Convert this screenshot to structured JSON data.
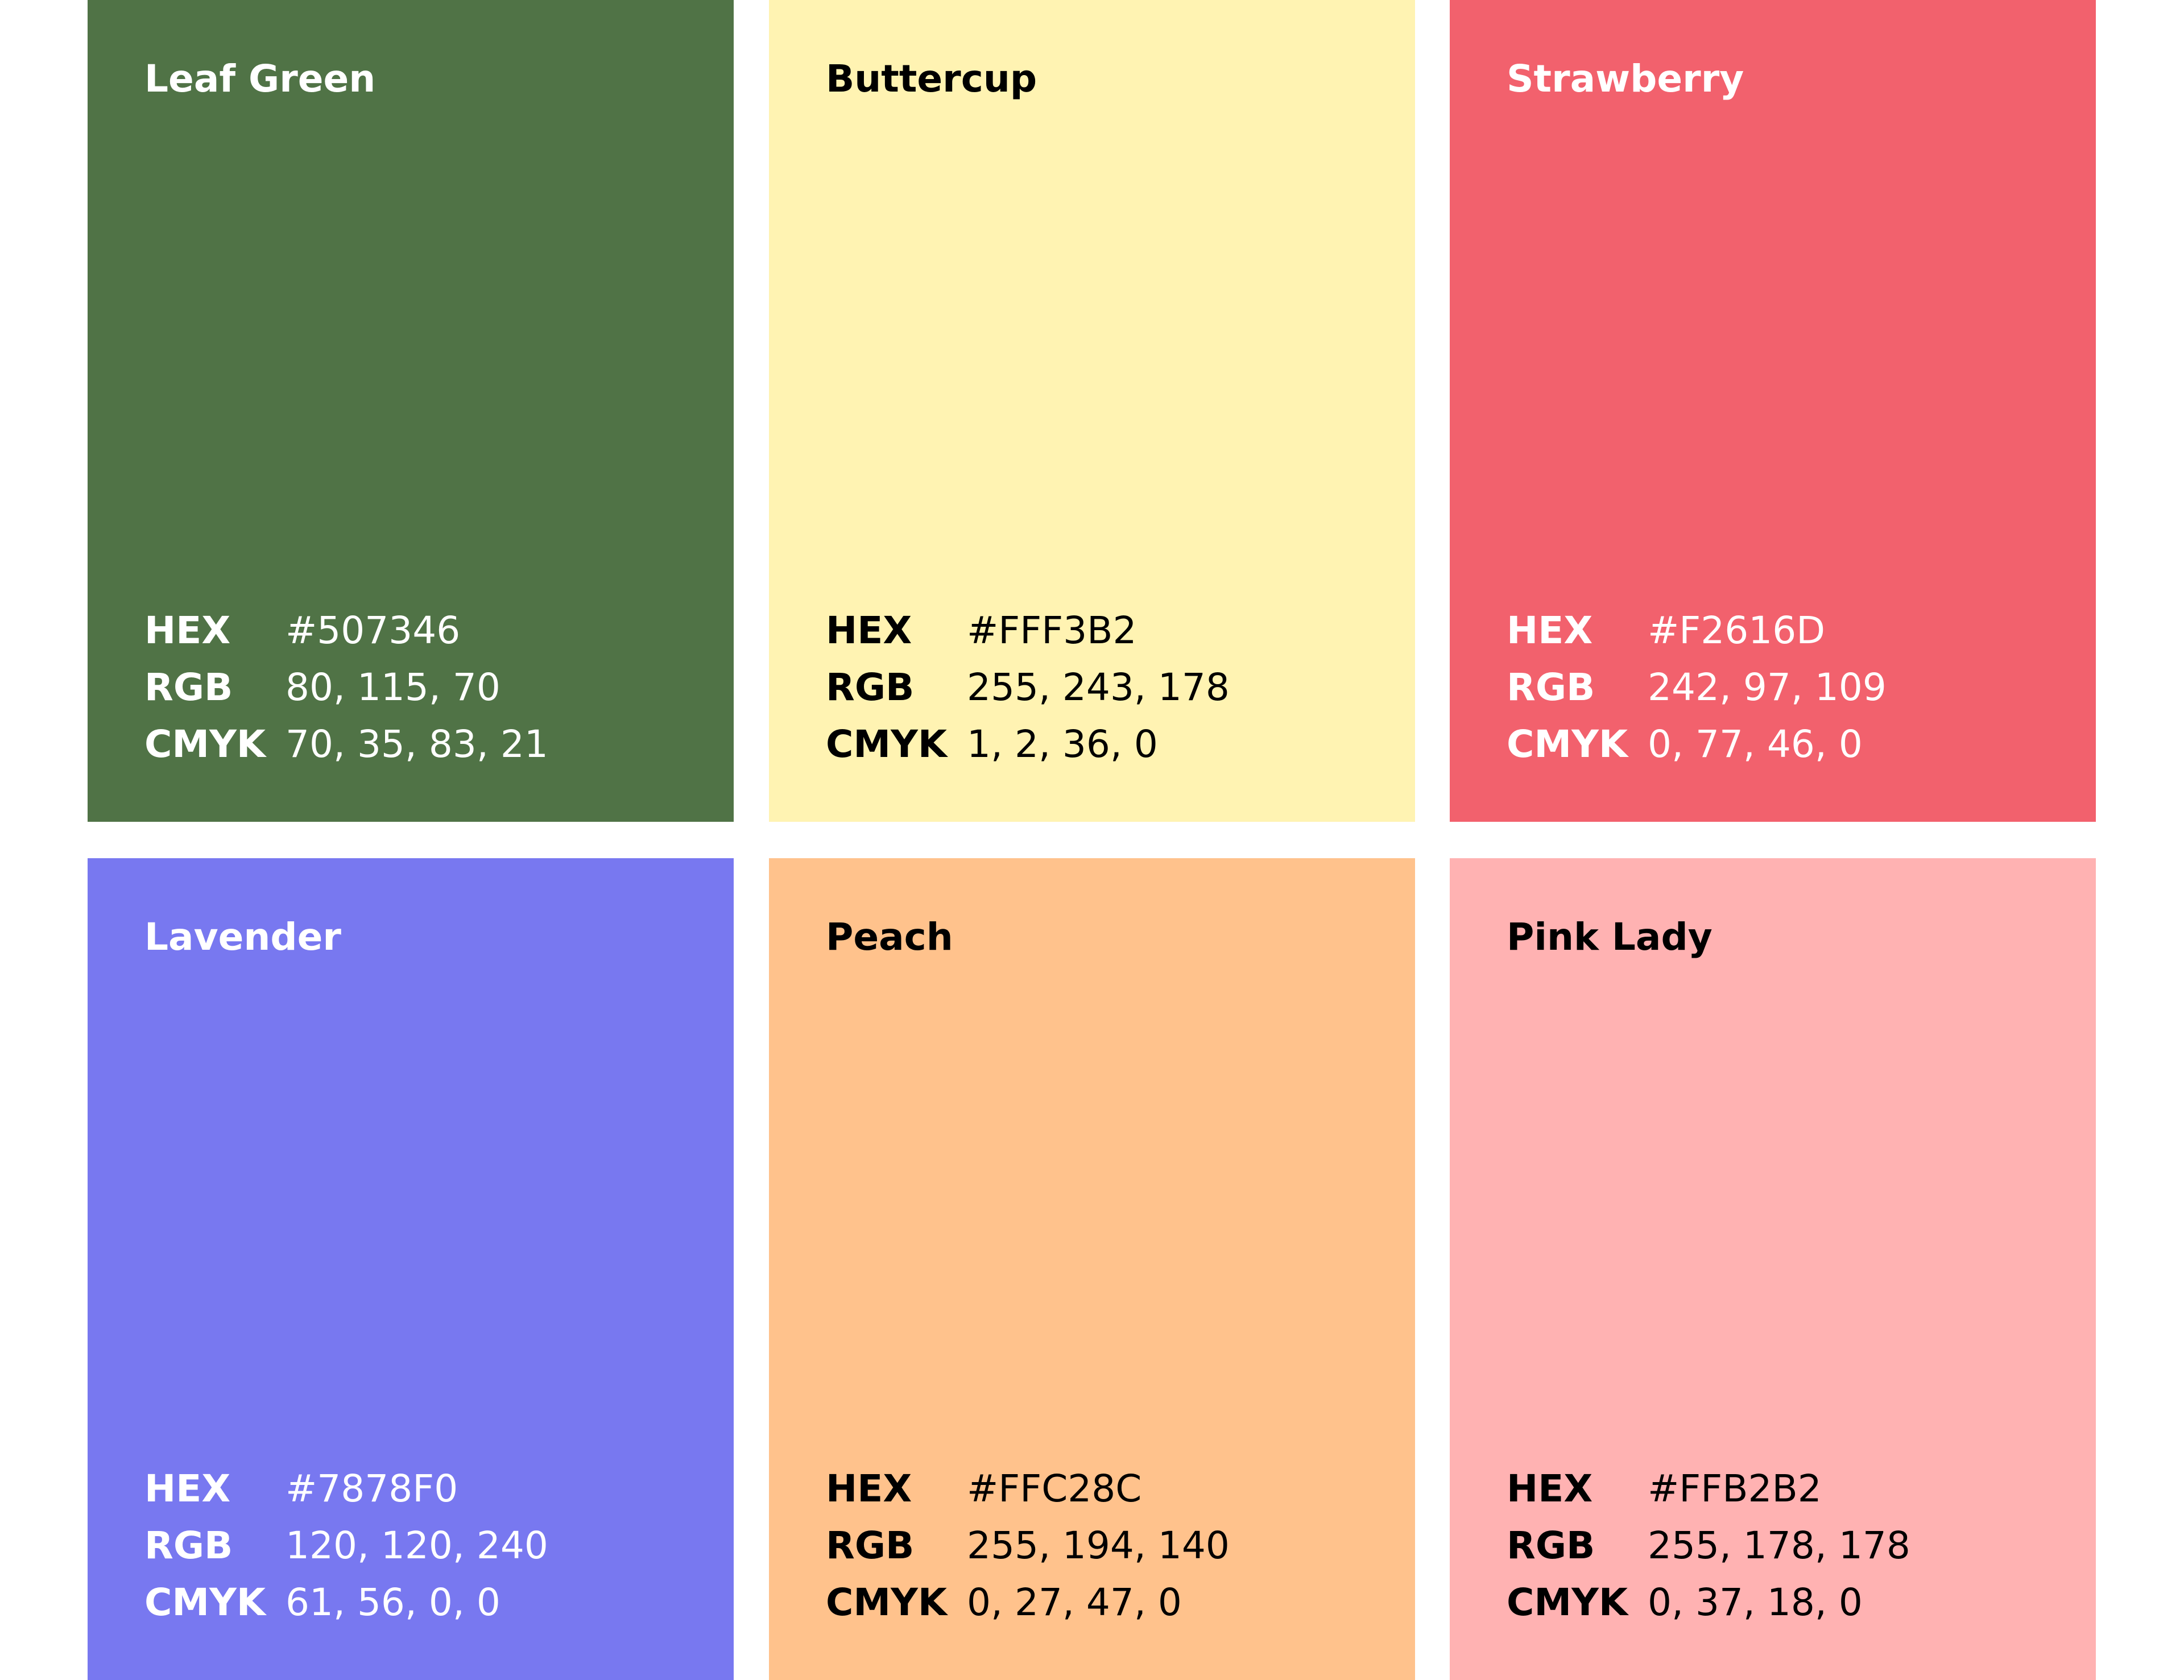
{
  "cards": [
    {
      "name": "Leaf Green",
      "text_color": "#ffffff",
      "rows": [
        {
          "label": "HEX",
          "value": "#507346"
        },
        {
          "label": "RGB",
          "value": "80, 115, 70"
        },
        {
          "label": "CMYK",
          "value": "70, 35, 83, 21"
        }
      ]
    },
    {
      "name": "Buttercup",
      "text_color": "#000000",
      "rows": [
        {
          "label": "HEX",
          "value": "#FFF3B2"
        },
        {
          "label": "RGB",
          "value": "255, 243, 178"
        },
        {
          "label": "CMYK",
          "value": "1, 2, 36, 0"
        }
      ]
    },
    {
      "name": "Strawberry",
      "text_color": "#ffffff",
      "rows": [
        {
          "label": "HEX",
          "value": "#F2616D"
        },
        {
          "label": "RGB",
          "value": "242, 97, 109"
        },
        {
          "label": "CMYK",
          "value": "0, 77, 46, 0"
        }
      ]
    },
    {
      "name": "Lavender",
      "text_color": "#ffffff",
      "rows": [
        {
          "label": "HEX",
          "value": "#7878F0"
        },
        {
          "label": "RGB",
          "value": "120, 120, 240"
        },
        {
          "label": "CMYK",
          "value": "61, 56, 0, 0"
        }
      ]
    },
    {
      "name": "Peach",
      "text_color": "#000000",
      "rows": [
        {
          "label": "HEX",
          "value": "#FFC28C"
        },
        {
          "label": "RGB",
          "value": "255, 194, 140"
        },
        {
          "label": "CMYK",
          "value": "0, 27, 47, 0"
        }
      ]
    },
    {
      "name": "Pink Lady",
      "text_color": "#000000",
      "rows": [
        {
          "label": "HEX",
          "value": "#FFB2B2"
        },
        {
          "label": "RGB",
          "value": "255, 178, 178"
        },
        {
          "label": "CMYK",
          "value": "0, 37, 18, 0"
        }
      ]
    }
  ]
}
